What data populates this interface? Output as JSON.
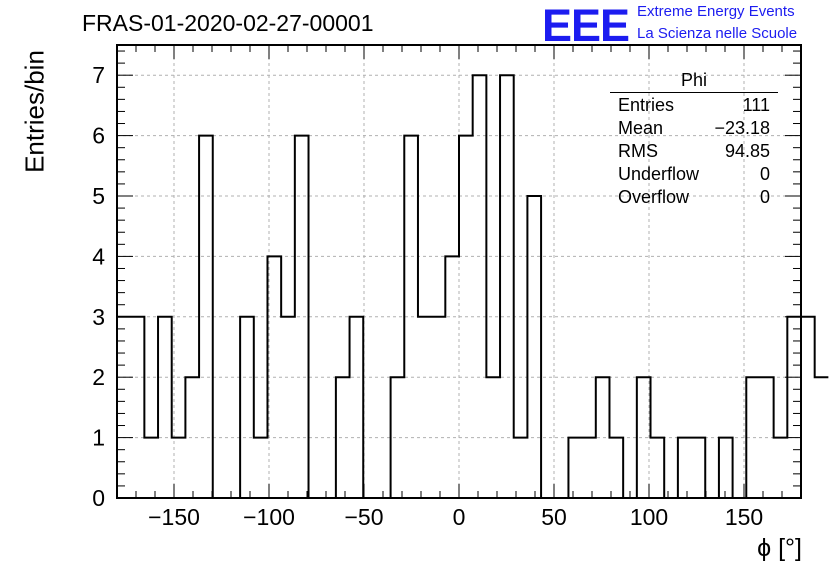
{
  "title": "FRAS-01-2020-02-27-00001",
  "logo": {
    "text": "EEE",
    "line1": "Extreme Energy Events",
    "line2": "La Scienza nelle Scuole",
    "color": "#1c1cf0"
  },
  "stats": {
    "title": "Phi",
    "rows": [
      {
        "label": "Entries",
        "value": "111"
      },
      {
        "label": "Mean",
        "value": "−23.18"
      },
      {
        "label": "RMS",
        "value": "94.85"
      },
      {
        "label": "Underflow",
        "value": "0"
      },
      {
        "label": "Overflow",
        "value": "0"
      }
    ]
  },
  "chart_data": {
    "type": "histogram",
    "xlabel": "ϕ [°]",
    "ylabel": "Entries/bin",
    "xlim": [
      -180,
      180
    ],
    "ylim": [
      0,
      7.5
    ],
    "grid": true,
    "bin_width": 7.2,
    "bin_edges_start": -180,
    "counts": [
      3,
      3,
      1,
      3,
      1,
      2,
      6,
      0,
      0,
      3,
      1,
      4,
      3,
      6,
      0,
      0,
      2,
      3,
      0,
      0,
      2,
      6,
      3,
      3,
      4,
      6,
      7,
      2,
      7,
      1,
      5,
      0,
      0,
      1,
      1,
      2,
      1,
      0,
      2,
      1,
      0,
      1,
      1,
      0,
      1,
      0,
      2,
      2,
      1,
      3,
      3,
      2
    ],
    "xticks": [
      -150,
      -100,
      -50,
      0,
      50,
      100,
      150
    ],
    "xtick_labels": [
      "−150",
      "−100",
      "−50",
      "0",
      "50",
      "100",
      "150"
    ],
    "yticks": [
      0,
      1,
      2,
      3,
      4,
      5,
      6,
      7
    ],
    "ytick_labels": [
      "0",
      "1",
      "2",
      "3",
      "4",
      "5",
      "6",
      "7"
    ]
  }
}
